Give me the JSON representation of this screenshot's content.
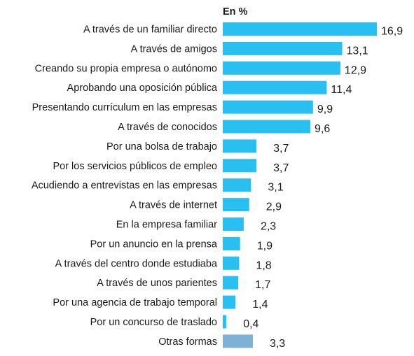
{
  "chart_data": {
    "type": "bar",
    "orientation": "horizontal",
    "unit_label": "En %",
    "categories": [
      "A través de un familiar directo",
      "A través de amigos",
      "Creando su propia empresa o autónomo",
      "Aprobando una oposición pública",
      "Presentando currículum en las empresas",
      "A través de conocidos",
      "Por una bolsa de trabajo",
      "Por los servicios públicos de empleo",
      "Acudiendo a entrevistas en las empresas",
      "A través de internet",
      "En la empresa familiar",
      "Por un anuncio en la prensa",
      "A través del centro donde estudiaba",
      "A través de unos parientes",
      "Por una agencia de trabajo temporal",
      "Por un concurso de traslado",
      "Otras formas"
    ],
    "values": [
      16.9,
      13.1,
      12.9,
      11.4,
      9.9,
      9.6,
      3.7,
      3.7,
      3.1,
      2.9,
      2.3,
      1.9,
      1.8,
      1.7,
      1.4,
      0.4,
      3.3
    ],
    "value_labels": [
      "16,9",
      "13,1",
      "12,9",
      "11,4",
      "9,9",
      "9,6",
      "3,7",
      "3,7",
      "3,1",
      "2,9",
      "2,3",
      "1,9",
      "1,8",
      "1,7",
      "1,4",
      "0,4",
      "3,3"
    ],
    "colors": [
      "#29c0f1",
      "#29c0f1",
      "#29c0f1",
      "#29c0f1",
      "#29c0f1",
      "#29c0f1",
      "#29c0f1",
      "#29c0f1",
      "#29c0f1",
      "#29c0f1",
      "#29c0f1",
      "#29c0f1",
      "#29c0f1",
      "#29c0f1",
      "#29c0f1",
      "#29c0f1",
      "#7fb0d6"
    ],
    "xlim": [
      0,
      16.9
    ],
    "grid": false,
    "legend": "none"
  }
}
